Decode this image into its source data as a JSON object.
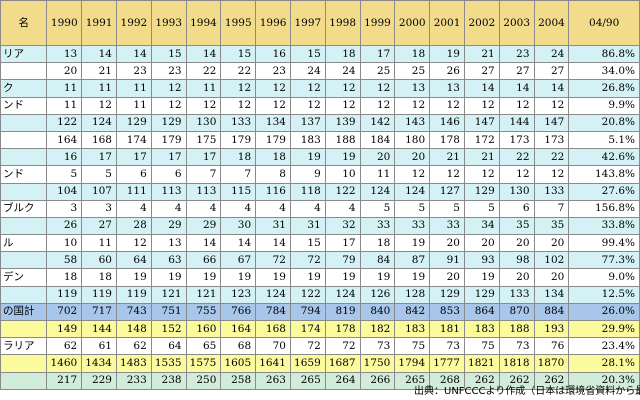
{
  "table": {
    "headers": [
      "名",
      "1990",
      "1991",
      "1992",
      "1993",
      "1994",
      "1995",
      "1996",
      "1997",
      "1998",
      "1999",
      "2000",
      "2001",
      "2002",
      "2003",
      "2004",
      "04/90"
    ],
    "rows": [
      {
        "style": "cyan",
        "cells": [
          "リア",
          "13",
          "14",
          "14",
          "15",
          "14",
          "15",
          "16",
          "15",
          "18",
          "17",
          "18",
          "19",
          "21",
          "23",
          "24",
          "86.8%"
        ]
      },
      {
        "style": "white",
        "cells": [
          "",
          "20",
          "21",
          "23",
          "23",
          "22",
          "22",
          "23",
          "24",
          "24",
          "25",
          "25",
          "26",
          "27",
          "27",
          "27",
          "34.0%"
        ]
      },
      {
        "style": "cyan",
        "cells": [
          "ク",
          "11",
          "11",
          "11",
          "12",
          "11",
          "12",
          "12",
          "12",
          "12",
          "12",
          "13",
          "13",
          "14",
          "14",
          "14",
          "26.8%"
        ]
      },
      {
        "style": "white",
        "cells": [
          "ンド",
          "11",
          "12",
          "11",
          "12",
          "12",
          "12",
          "12",
          "12",
          "12",
          "12",
          "12",
          "12",
          "12",
          "12",
          "12",
          "9.9%"
        ]
      },
      {
        "style": "cyan",
        "cells": [
          "",
          "122",
          "124",
          "129",
          "129",
          "130",
          "133",
          "134",
          "137",
          "139",
          "142",
          "143",
          "146",
          "147",
          "144",
          "147",
          "20.8%"
        ]
      },
      {
        "style": "white",
        "cells": [
          "",
          "164",
          "168",
          "174",
          "179",
          "175",
          "179",
          "179",
          "183",
          "188",
          "184",
          "180",
          "178",
          "172",
          "173",
          "173",
          "5.1%"
        ]
      },
      {
        "style": "cyan",
        "cells": [
          "",
          "16",
          "17",
          "17",
          "17",
          "17",
          "18",
          "18",
          "19",
          "19",
          "20",
          "20",
          "21",
          "21",
          "22",
          "22",
          "42.6%"
        ]
      },
      {
        "style": "white",
        "cells": [
          "ンド",
          "5",
          "5",
          "6",
          "6",
          "7",
          "7",
          "8",
          "9",
          "10",
          "11",
          "12",
          "12",
          "12",
          "12",
          "12",
          "143.8%"
        ]
      },
      {
        "style": "cyan",
        "cells": [
          "",
          "104",
          "107",
          "111",
          "113",
          "113",
          "115",
          "116",
          "118",
          "122",
          "124",
          "124",
          "127",
          "129",
          "130",
          "133",
          "27.6%"
        ]
      },
      {
        "style": "white",
        "cells": [
          "ブルク",
          "3",
          "3",
          "4",
          "4",
          "4",
          "4",
          "4",
          "4",
          "4",
          "5",
          "5",
          "5",
          "5",
          "6",
          "7",
          "156.8%"
        ]
      },
      {
        "style": "cyan",
        "cells": [
          "",
          "26",
          "27",
          "28",
          "29",
          "29",
          "30",
          "31",
          "31",
          "32",
          "33",
          "33",
          "33",
          "34",
          "35",
          "35",
          "33.8%"
        ]
      },
      {
        "style": "white",
        "cells": [
          "ル",
          "10",
          "11",
          "12",
          "13",
          "14",
          "14",
          "14",
          "15",
          "17",
          "18",
          "19",
          "20",
          "20",
          "20",
          "20",
          "99.4%"
        ]
      },
      {
        "style": "cyan",
        "cells": [
          "",
          "58",
          "60",
          "64",
          "63",
          "66",
          "67",
          "72",
          "72",
          "79",
          "84",
          "87",
          "91",
          "93",
          "98",
          "102",
          "77.3%"
        ]
      },
      {
        "style": "white",
        "cells": [
          "デン",
          "18",
          "18",
          "19",
          "19",
          "19",
          "19",
          "19",
          "19",
          "19",
          "19",
          "19",
          "20",
          "19",
          "20",
          "20",
          "9.0%"
        ]
      },
      {
        "style": "cyan",
        "cells": [
          "",
          "119",
          "119",
          "119",
          "121",
          "121",
          "123",
          "124",
          "122",
          "124",
          "126",
          "128",
          "129",
          "129",
          "133",
          "134",
          "12.5%"
        ]
      },
      {
        "style": "blue",
        "cells": [
          "の国計",
          "702",
          "717",
          "743",
          "751",
          "755",
          "766",
          "784",
          "794",
          "819",
          "840",
          "842",
          "853",
          "864",
          "870",
          "884",
          "26.0%"
        ]
      },
      {
        "style": "yellow",
        "cells": [
          "",
          "149",
          "144",
          "148",
          "152",
          "160",
          "164",
          "168",
          "174",
          "178",
          "182",
          "183",
          "181",
          "183",
          "188",
          "193",
          "29.9%"
        ]
      },
      {
        "style": "white",
        "cells": [
          "ラリア",
          "62",
          "61",
          "62",
          "64",
          "65",
          "68",
          "70",
          "72",
          "72",
          "73",
          "75",
          "73",
          "75",
          "73",
          "76",
          "23.4%"
        ]
      },
      {
        "style": "yellow",
        "cells": [
          "",
          "1460",
          "1434",
          "1483",
          "1535",
          "1575",
          "1605",
          "1641",
          "1659",
          "1687",
          "1750",
          "1794",
          "1777",
          "1821",
          "1818",
          "1870",
          "28.1%"
        ]
      },
      {
        "style": "green",
        "cells": [
          "",
          "217",
          "229",
          "233",
          "238",
          "250",
          "258",
          "263",
          "265",
          "264",
          "266",
          "265",
          "268",
          "262",
          "262",
          "262",
          "20.3%"
        ]
      }
    ]
  },
  "footer": {
    "source_note": "出典：UNFCCCより作成（日本は環境省資料から最新"
  }
}
